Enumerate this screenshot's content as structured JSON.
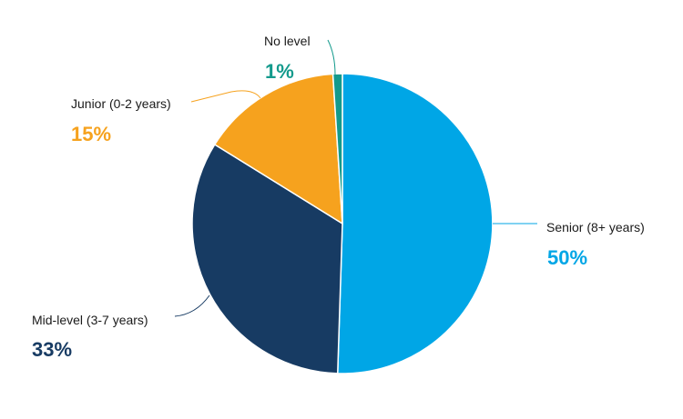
{
  "chart_data": {
    "type": "pie",
    "title": "",
    "slices": [
      {
        "label": "Senior (8+ years)",
        "value": 50,
        "value_label": "50%",
        "color": "#00A6E6"
      },
      {
        "label": "Mid-level (3-7 years)",
        "value": 33,
        "value_label": "33%",
        "color": "#173B63"
      },
      {
        "label": "Junior (0-2 years)",
        "value": 15,
        "value_label": "15%",
        "color": "#F6A21E"
      },
      {
        "label": "No level",
        "value": 1,
        "value_label": "1%",
        "color": "#139A8C"
      }
    ],
    "legend": "none"
  }
}
